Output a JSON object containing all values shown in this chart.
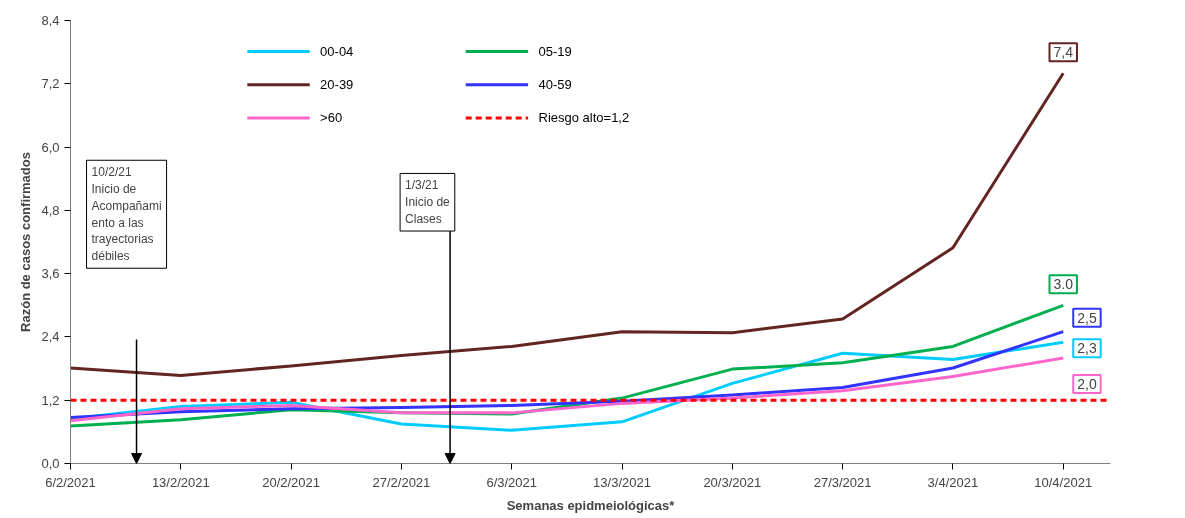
{
  "chart_data": {
    "type": "line",
    "xlabel": "Semanas epidmeiológicas*",
    "ylabel": "Razón de casos confirmados",
    "x": [
      "2021-02-06",
      "2021-02-13",
      "2021-02-20",
      "2021-02-27",
      "2021-03-06",
      "2021-03-13",
      "2021-03-20",
      "2021-03-27",
      "2021-04-03",
      "2021-04-10"
    ],
    "xlim": [
      "2021-02-06",
      "2021-04-13"
    ],
    "xticks": [
      {
        "value": "2021-02-06",
        "label": "6/2/2021"
      },
      {
        "value": "2021-02-13",
        "label": "13/2/2021"
      },
      {
        "value": "2021-02-20",
        "label": "20/2/2021"
      },
      {
        "value": "2021-02-27",
        "label": "27/2/2021"
      },
      {
        "value": "2021-03-06",
        "label": "6/3/2021"
      },
      {
        "value": "2021-03-13",
        "label": "13/3/2021"
      },
      {
        "value": "2021-03-20",
        "label": "20/3/2021"
      },
      {
        "value": "2021-03-27",
        "label": "27/3/2021"
      },
      {
        "value": "2021-04-03",
        "label": "3/4/2021"
      },
      {
        "value": "2021-04-10",
        "label": "10/4/2021"
      }
    ],
    "ylim": [
      0,
      8.4
    ],
    "yticks": [
      {
        "value": 0,
        "label": "0,0"
      },
      {
        "value": 1.2,
        "label": "1,2"
      },
      {
        "value": 2.4,
        "label": "2,4"
      },
      {
        "value": 3.6,
        "label": "3,6"
      },
      {
        "value": 4.8,
        "label": "4,8"
      },
      {
        "value": 6.0,
        "label": "6,0"
      },
      {
        "value": 7.2,
        "label": "7,2"
      },
      {
        "value": 8.4,
        "label": "8,4"
      }
    ],
    "series": [
      {
        "name": "00-04",
        "color": "#00ccff",
        "values": [
          0.85,
          1.08,
          1.16,
          0.75,
          0.63,
          0.79,
          1.52,
          2.09,
          1.97,
          2.3
        ],
        "value_labels": [
          null,
          null,
          null,
          null,
          null,
          null,
          null,
          null,
          null,
          "2,3"
        ]
      },
      {
        "name": "05-19",
        "color": "#00b050",
        "values": [
          0.71,
          0.83,
          1.02,
          0.96,
          0.94,
          1.24,
          1.79,
          1.91,
          2.22,
          3.0
        ],
        "value_labels": [
          null,
          null,
          null,
          null,
          null,
          null,
          null,
          null,
          null,
          "3.0"
        ]
      },
      {
        "name": "20-39",
        "color": "#632523",
        "values": [
          1.81,
          1.67,
          1.85,
          2.05,
          2.22,
          2.5,
          2.48,
          2.74,
          4.09,
          7.4
        ],
        "value_labels": [
          null,
          null,
          null,
          null,
          null,
          null,
          null,
          null,
          null,
          "7,4"
        ]
      },
      {
        "name": "40-59",
        "color": "#3333ff",
        "values": [
          0.87,
          0.98,
          1.04,
          1.06,
          1.1,
          1.18,
          1.3,
          1.44,
          1.81,
          2.5
        ],
        "value_labels": [
          null,
          null,
          null,
          null,
          null,
          null,
          null,
          null,
          null,
          "2,5"
        ]
      },
      {
        "name": ">60",
        "color": "#ff66cc",
        "values": [
          0.81,
          1.04,
          1.1,
          0.96,
          0.96,
          1.14,
          1.24,
          1.38,
          1.65,
          2.0
        ],
        "value_labels": [
          null,
          null,
          null,
          null,
          null,
          null,
          null,
          null,
          null,
          "2,0"
        ]
      }
    ],
    "ref_lines": [
      {
        "axis": "y",
        "value": 1.2,
        "label": "Riesgo alto=1,2",
        "color": "#ff0000",
        "line_style": "dashed"
      }
    ],
    "annotations": [
      "10/2/21\nInicio de\nAcompañami\nento a las\ntrayectorias\ndébiles",
      "1/3/21\nInicio de\nClases"
    ],
    "legend": "top left",
    "grid": false,
    "marker": "none",
    "line_style": "solid"
  }
}
